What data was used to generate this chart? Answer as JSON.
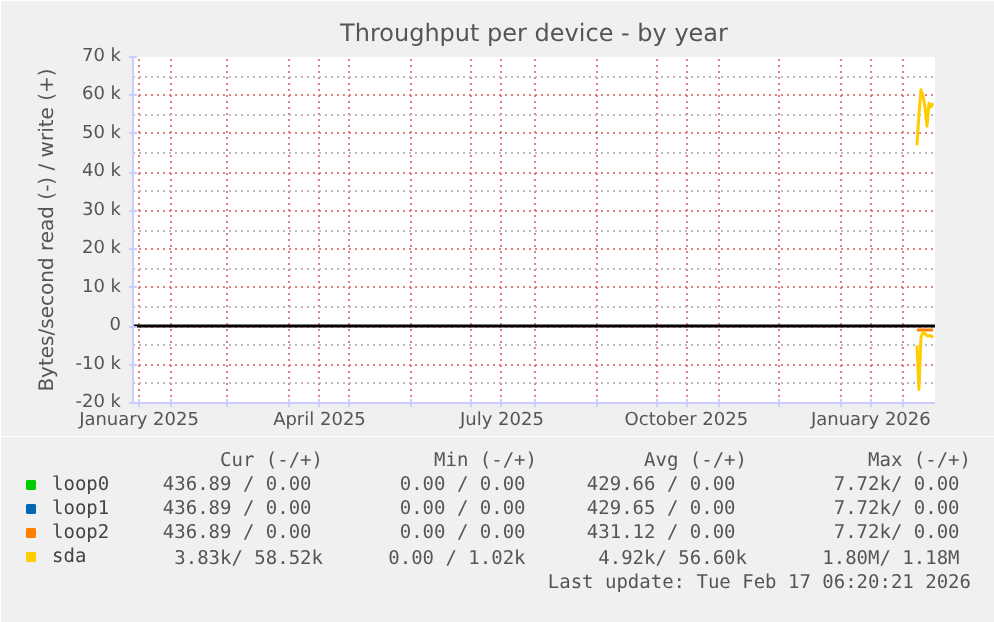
{
  "chart_data": {
    "type": "line",
    "title": "Throughput per device - by year",
    "ylabel": "Bytes/second read (-) / write (+)",
    "xlim": [
      "2025-01-13",
      "2026-02-17"
    ],
    "xticks": [
      {
        "value": "2025-01-16",
        "label": "January 2025"
      },
      {
        "value": "2025-04-16",
        "label": "April 2025"
      },
      {
        "value": "2025-07-16",
        "label": "July 2025"
      },
      {
        "value": "2025-10-16",
        "label": "October 2025"
      },
      {
        "value": "2026-01-16",
        "label": "January 2026"
      },
      {
        "value": "2025-02-01",
        "label": null
      },
      {
        "value": "2025-03-01",
        "label": null
      },
      {
        "value": "2025-04-01",
        "label": null
      },
      {
        "value": "2025-05-01",
        "label": null
      },
      {
        "value": "2025-06-01",
        "label": null
      },
      {
        "value": "2025-07-01",
        "label": null
      },
      {
        "value": "2025-08-01",
        "label": null
      },
      {
        "value": "2025-09-01",
        "label": null
      },
      {
        "value": "2025-10-01",
        "label": null
      },
      {
        "value": "2025-11-01",
        "label": null
      },
      {
        "value": "2025-12-01",
        "label": null
      },
      {
        "value": "2026-01-01",
        "label": null
      },
      {
        "value": "2026-02-01",
        "label": null
      }
    ],
    "ylim": [
      -20000,
      70000
    ],
    "yticks": [
      {
        "value": -20000,
        "label": "-20 k"
      },
      {
        "value": -10000,
        "label": "-10 k"
      },
      0,
      {
        "value": 10000,
        "label": "10 k"
      },
      {
        "value": 20000,
        "label": "20 k"
      },
      {
        "value": 30000,
        "label": "30 k"
      },
      {
        "value": 40000,
        "label": "40 k"
      },
      {
        "value": 50000,
        "label": "50 k"
      },
      {
        "value": 60000,
        "label": "60 k"
      },
      {
        "value": 70000,
        "label": "70 k"
      }
    ],
    "grid": true,
    "legend": "bottom left",
    "line_style": "solid",
    "ref_lines": [
      {
        "axis": "y",
        "value": 0,
        "color": "#000000"
      }
    ],
    "series": [
      {
        "name": "loop0",
        "color": "#00cc00"
      },
      {
        "name": "loop1",
        "color": "#0066b3"
      },
      {
        "name": "loop2",
        "color": "#ff8000",
        "x": [
          "2026-02-08",
          "2026-02-16"
        ],
        "values": [
          -1000,
          -1000
        ]
      },
      {
        "name": "sda",
        "color": "#ffcc00",
        "x": [
          "2026-02-08",
          "2026-02-09",
          "2026-02-10",
          "2026-02-11",
          "2026-02-12",
          "2026-02-13",
          "2026-02-14",
          "2026-02-15",
          "2026-02-16"
        ],
        "values": [
          -5000,
          -16500,
          -3000,
          -1500,
          -2000,
          -2500,
          -2500,
          -2500,
          -3000
        ]
      },
      {
        "color": "#ffcc00",
        "x": [
          "2026-02-08",
          "2026-02-09",
          "2026-02-10",
          "2026-02-11",
          "2026-02-12",
          "2026-02-13",
          "2026-02-14",
          "2026-02-15",
          "2026-02-16"
        ],
        "values": [
          47000,
          55000,
          61500,
          60000,
          57000,
          52000,
          58000,
          57000,
          58000
        ]
      }
    ],
    "annotations": [
      "Cur (-/+)",
      "Min (-/+)",
      "Avg (-/+)",
      "Max (-/+)",
      "436.89 /  0.00",
      "0.00 /  0.00",
      "429.66 /  0.00",
      "7.72k/  0.00",
      "436.89 /  0.00",
      "0.00 /  0.00",
      "429.65 /  0.00",
      "7.72k/  0.00",
      "436.89 /  0.00",
      "0.00 /  0.00",
      "431.12 /  0.00",
      "7.72k/  0.00",
      "3.83k/ 58.52k",
      "0.00 /  1.02k",
      "4.92k/ 56.60k",
      "1.80M/  1.18M",
      "Last update: Tue Feb 17 06:20:21 2026"
    ]
  }
}
